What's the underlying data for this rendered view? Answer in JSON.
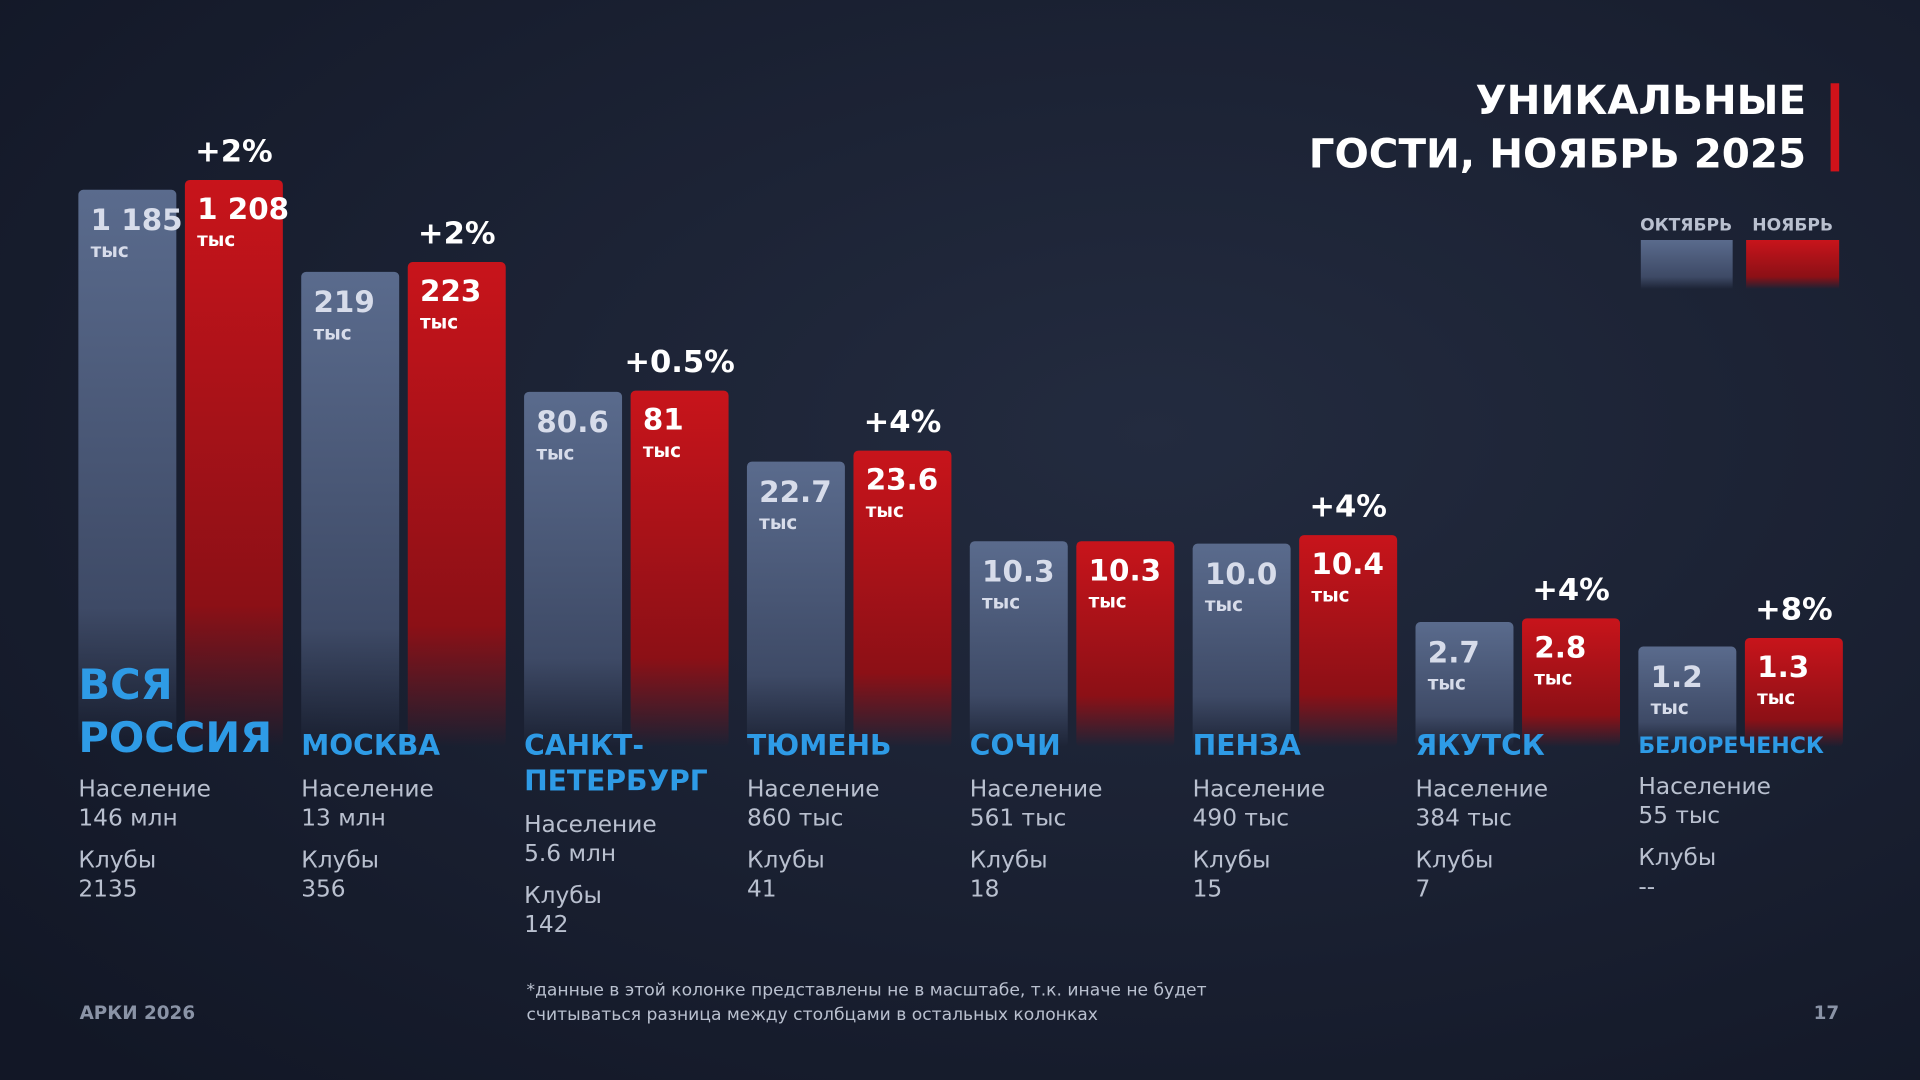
{
  "header": {
    "title_lines": [
      "УНИКАЛЬНЫЕ",
      "ГОСТИ, НОЯБРЬ 2025"
    ]
  },
  "legend": [
    "ОКТЯБРЬ",
    "НОЯБРЬ"
  ],
  "groups": [
    {
      "name": [
        "ВСЯ",
        "РОССИЯ"
      ],
      "october": {
        "value": "1 185",
        "unit": "тыс"
      },
      "november": {
        "value": "1 208",
        "unit": "тыс"
      },
      "change": "+2%",
      "population_label": "Население",
      "population": "146 млн",
      "clubs_label": "Клубы",
      "clubs": "2135"
    },
    {
      "name": [
        "МОСКВА"
      ],
      "october": {
        "value": "219",
        "unit": "тыс"
      },
      "november": {
        "value": "223",
        "unit": "тыс"
      },
      "change": "+2%",
      "population_label": "Население",
      "population": "13 млн",
      "clubs_label": "Клубы",
      "clubs": "356"
    },
    {
      "name": [
        "САНКТ-",
        "ПЕТЕРБУРГ"
      ],
      "october": {
        "value": "80.6",
        "unit": "тыс"
      },
      "november": {
        "value": "81",
        "unit": "тыс"
      },
      "change": "+0.5%",
      "population_label": "Население",
      "population": "5.6 млн",
      "clubs_label": "Клубы",
      "clubs": "142"
    },
    {
      "name": [
        "ТЮМЕНЬ"
      ],
      "october": {
        "value": "22.7",
        "unit": "тыс"
      },
      "november": {
        "value": "23.6",
        "unit": "тыс"
      },
      "change": "+4%",
      "population_label": "Население",
      "population": "860 тыс",
      "clubs_label": "Клубы",
      "clubs": "41"
    },
    {
      "name": [
        "СОЧИ"
      ],
      "october": {
        "value": "10.3",
        "unit": "тыс"
      },
      "november": {
        "value": "10.3",
        "unit": "тыс"
      },
      "population_label": "Население",
      "population": "561 тыс",
      "clubs_label": "Клубы",
      "clubs": "18"
    },
    {
      "name": [
        "ПЕНЗА"
      ],
      "october": {
        "value": "10.0",
        "unit": "тыс"
      },
      "november": {
        "value": "10.4",
        "unit": "тыс"
      },
      "change": "+4%",
      "population_label": "Население",
      "population": "490 тыс",
      "clubs_label": "Клубы",
      "clubs": "15"
    },
    {
      "name": [
        "ЯКУТСК"
      ],
      "october": {
        "value": "2.7",
        "unit": "тыс"
      },
      "november": {
        "value": "2.8",
        "unit": "тыс"
      },
      "change": "+4%",
      "population_label": "Население",
      "population": "384 тыс",
      "clubs_label": "Клубы",
      "clubs": "7"
    },
    {
      "name": [
        "БЕЛОРЕЧЕНСК"
      ],
      "october": {
        "value": "1.2",
        "unit": "тыс"
      },
      "november": {
        "value": "1.3",
        "unit": "тыс"
      },
      "change": "+8%",
      "population_label": "Население",
      "population": "55 тыс",
      "clubs_label": "Клубы",
      "clubs": "--"
    }
  ],
  "footnote": [
    "*данные в этой колонке представлены не в масштабе, т.к. иначе не будет",
    "считываться разница между столбцами в остальных колонках"
  ],
  "footer": {
    "left": "АРКИ 2026",
    "page": "17"
  }
}
